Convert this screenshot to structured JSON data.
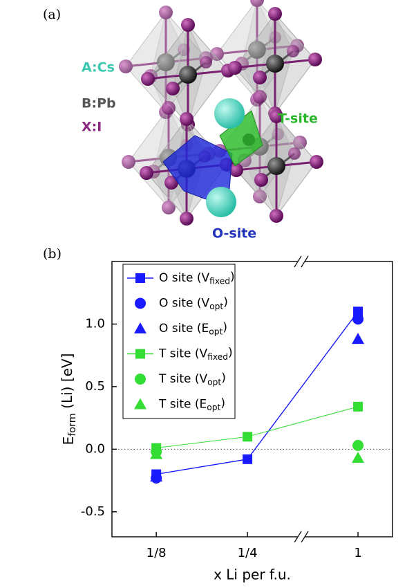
{
  "structure": {
    "panel_label": "(a)",
    "species": [
      "A:Cs",
      "B:Pb",
      "X:I"
    ],
    "sites": [
      "T-site",
      "O-site"
    ]
  },
  "chart_data": {
    "type": "scatter",
    "panel_label": "(b)",
    "x_label": "x Li per f.u.",
    "y_label": "Eform (Li) [eV]",
    "categories": [
      "1/8",
      "1/4",
      "1"
    ],
    "ylim": [
      -0.7,
      1.5
    ],
    "yticks": [
      -0.5,
      {
        "value": 0,
        "label": "0.0"
      },
      0.5,
      {
        "value": 1,
        "label": "1.0"
      }
    ],
    "reference_line": 0,
    "axis_break": true,
    "legend": "upper left",
    "series": [
      {
        "name": "O site (Vfixed)",
        "color": "#1a1aff",
        "marker": "square",
        "line": true,
        "values": [
          -0.2,
          -0.08,
          1.1
        ]
      },
      {
        "name": "O site (Vopt)",
        "color": "#1a1aff",
        "marker": "circle",
        "line": false,
        "values": [
          -0.23,
          null,
          1.04
        ]
      },
      {
        "name": "O site (Eopt)",
        "color": "#1a1aff",
        "marker": "triangle",
        "line": false,
        "values": [
          -0.22,
          null,
          0.88
        ]
      },
      {
        "name": "T site (Vfixed)",
        "color": "#33dd33",
        "marker": "square",
        "line": true,
        "values": [
          0.01,
          0.1,
          0.34
        ]
      },
      {
        "name": "T site (Vopt)",
        "color": "#33dd33",
        "marker": "circle",
        "line": false,
        "values": [
          -0.02,
          null,
          0.03
        ]
      },
      {
        "name": "T site (Eopt)",
        "color": "#33dd33",
        "marker": "triangle",
        "line": false,
        "values": [
          -0.04,
          null,
          -0.07
        ]
      }
    ]
  }
}
